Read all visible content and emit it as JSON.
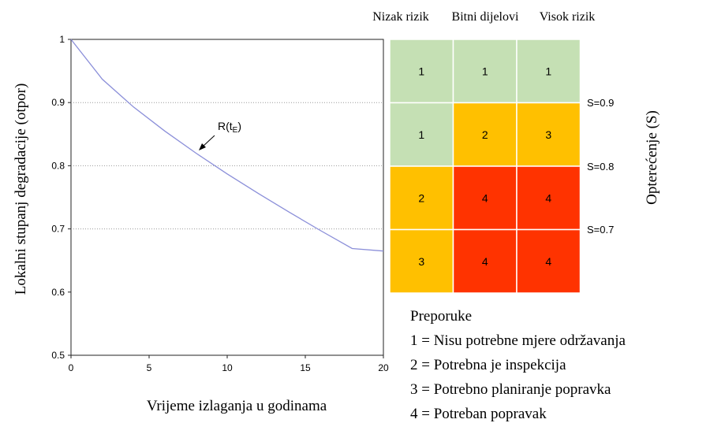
{
  "chart_data": {
    "type": "line",
    "xlabel": "Vrijeme izlaganja u godinama",
    "ylabel": "Lokalni stupanj degradacije (otpor)",
    "xlim": [
      0,
      20
    ],
    "ylim": [
      0.5,
      1.0
    ],
    "x_ticks": [
      "0",
      "5",
      "10",
      "15",
      "20"
    ],
    "y_ticks": [
      "0.5",
      "0.6",
      "0.7",
      "0.8",
      "0.9",
      "1"
    ],
    "grid": "dotted horizontal at 0.7, 0.8, 0.9",
    "series_color": "#8b8fd9",
    "x": [
      0,
      2,
      4,
      6,
      8,
      10,
      12,
      14,
      16,
      18,
      20
    ],
    "y": [
      1.0,
      0.937,
      0.893,
      0.855,
      0.82,
      0.787,
      0.756,
      0.726,
      0.697,
      0.669,
      0.665
    ],
    "annotation": {
      "label": "R(t",
      "subscript": "E",
      "close": ")",
      "x": 8.2,
      "y": 0.82
    }
  },
  "matrix": {
    "columns": [
      "Nizak rizik",
      "Bitni dijelovi",
      "Visok rizik"
    ],
    "rows": [
      [
        "1",
        "1",
        "1"
      ],
      [
        "1",
        "2",
        "3"
      ],
      [
        "2",
        "4",
        "4"
      ],
      [
        "3",
        "4",
        "4"
      ]
    ],
    "threshold_labels": [
      "S=0.9",
      "S=0.8",
      "S=0.7"
    ],
    "axis_label": "Opterećenje (S)",
    "colors": {
      "1": "#c5e0b4",
      "2": "#ffc000",
      "3": "#ffc000",
      "4": "#ff3300"
    }
  },
  "legend": {
    "title": "Preporuke",
    "items": [
      "1 = Nisu potrebne mjere održavanja",
      "2 = Potrebna je inspekcija",
      "3 = Potrebno planiranje popravka",
      "4 = Potreban popravak"
    ]
  }
}
